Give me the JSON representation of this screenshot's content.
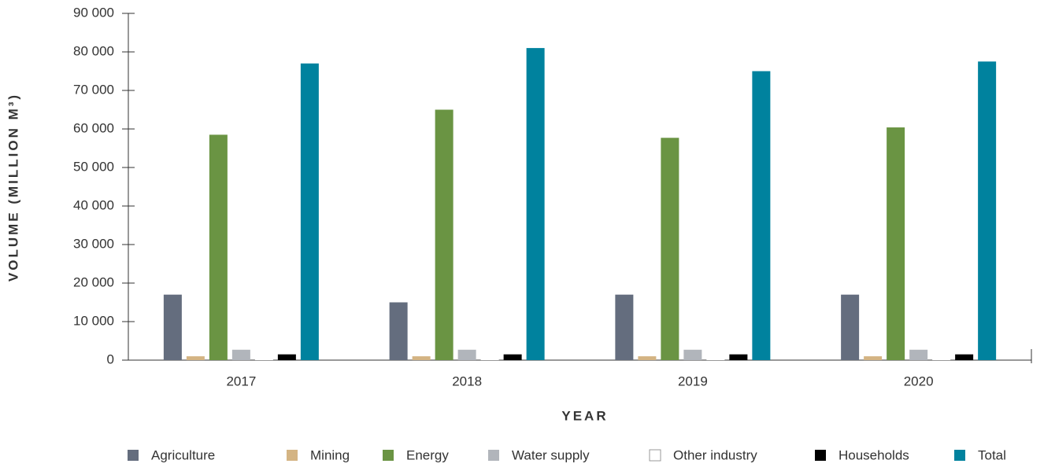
{
  "chart_data": {
    "type": "bar",
    "y_label": "VOLUME (MILLION M³)",
    "x_label": "YEAR",
    "categories": [
      "2017",
      "2018",
      "2019",
      "2020"
    ],
    "series": [
      {
        "name": "Agriculture",
        "color": "#646d7e",
        "values": [
          17000,
          15000,
          17000,
          17000
        ]
      },
      {
        "name": "Mining",
        "color": "#d4b483",
        "values": [
          1000,
          1000,
          1000,
          1000
        ]
      },
      {
        "name": "Energy",
        "color": "#6a9443",
        "values": [
          58500,
          65000,
          57700,
          60400
        ]
      },
      {
        "name": "Water supply",
        "color": "#b1b5bb",
        "values": [
          2700,
          2700,
          2700,
          2700
        ]
      },
      {
        "name": "Other industry",
        "color": "#ffffff",
        "values": [
          200,
          200,
          200,
          200
        ]
      },
      {
        "name": "Households",
        "color": "#000000",
        "values": [
          1500,
          1500,
          1500,
          1500
        ]
      },
      {
        "name": "Total",
        "color": "#00829e",
        "values": [
          77000,
          81000,
          75000,
          77500
        ]
      }
    ],
    "ylim": [
      0,
      90000
    ],
    "yticks": [
      0,
      {
        "value": 10000,
        "label": "10 000"
      },
      {
        "value": 20000,
        "label": "20 000"
      },
      {
        "value": 30000,
        "label": "30 000"
      },
      {
        "value": 40000,
        "label": "40 000"
      },
      {
        "value": 50000,
        "label": "50 000"
      },
      {
        "value": 60000,
        "label": "60 000"
      },
      {
        "value": 70000,
        "label": "70 000"
      },
      {
        "value": 80000,
        "label": "80 000"
      },
      {
        "value": 90000,
        "label": "90 000"
      }
    ],
    "legend_position": "bottom"
  }
}
